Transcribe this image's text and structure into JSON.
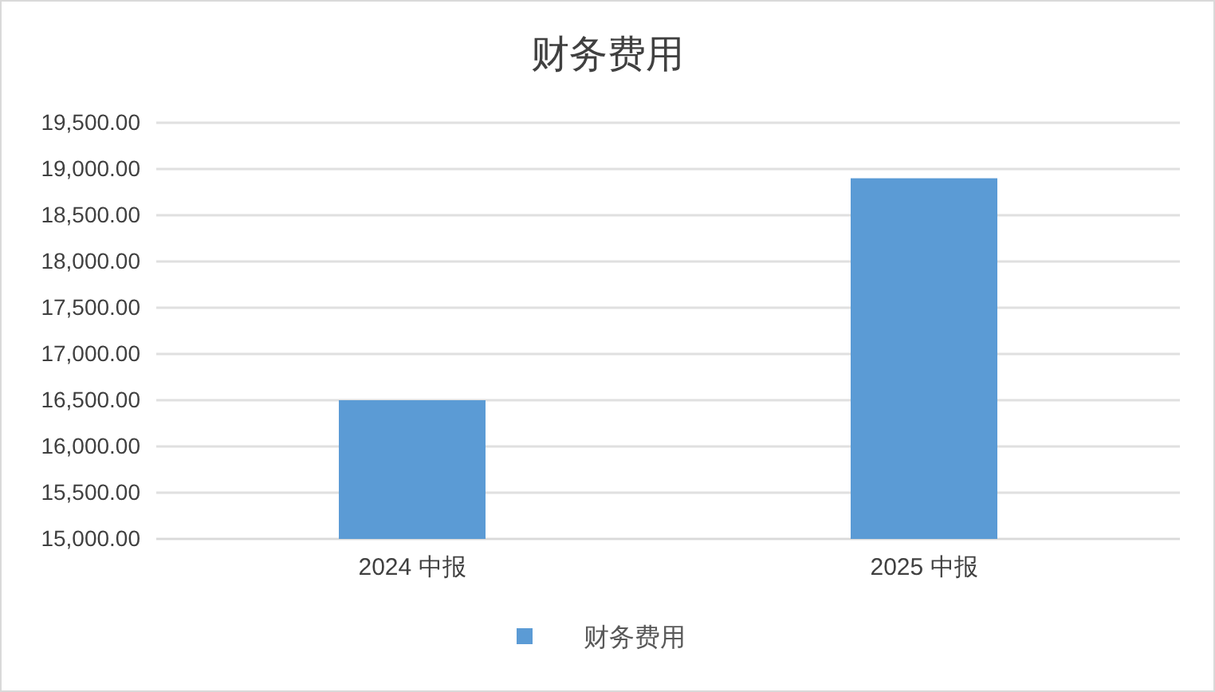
{
  "chart_data": {
    "type": "bar",
    "title": "财务费用",
    "categories": [
      "2024 中报",
      "2025 中报"
    ],
    "series": [
      {
        "name": "财务费用",
        "color": "#5b9bd5",
        "values": [
          16500,
          18900
        ]
      }
    ],
    "ylim": [
      15000,
      19500
    ],
    "yticks": [
      {
        "value": 15000,
        "label": "15,000.00"
      },
      {
        "value": 15500,
        "label": "15,500.00"
      },
      {
        "value": 16000,
        "label": "16,000.00"
      },
      {
        "value": 16500,
        "label": "16,500.00"
      },
      {
        "value": 17000,
        "label": "17,000.00"
      },
      {
        "value": 17500,
        "label": "17,500.00"
      },
      {
        "value": 18000,
        "label": "18,000.00"
      },
      {
        "value": 18500,
        "label": "18,500.00"
      },
      {
        "value": 19000,
        "label": "19,000.00"
      },
      {
        "value": 19500,
        "label": "19,500.00"
      }
    ],
    "grid": "y",
    "legend": "bottom"
  }
}
